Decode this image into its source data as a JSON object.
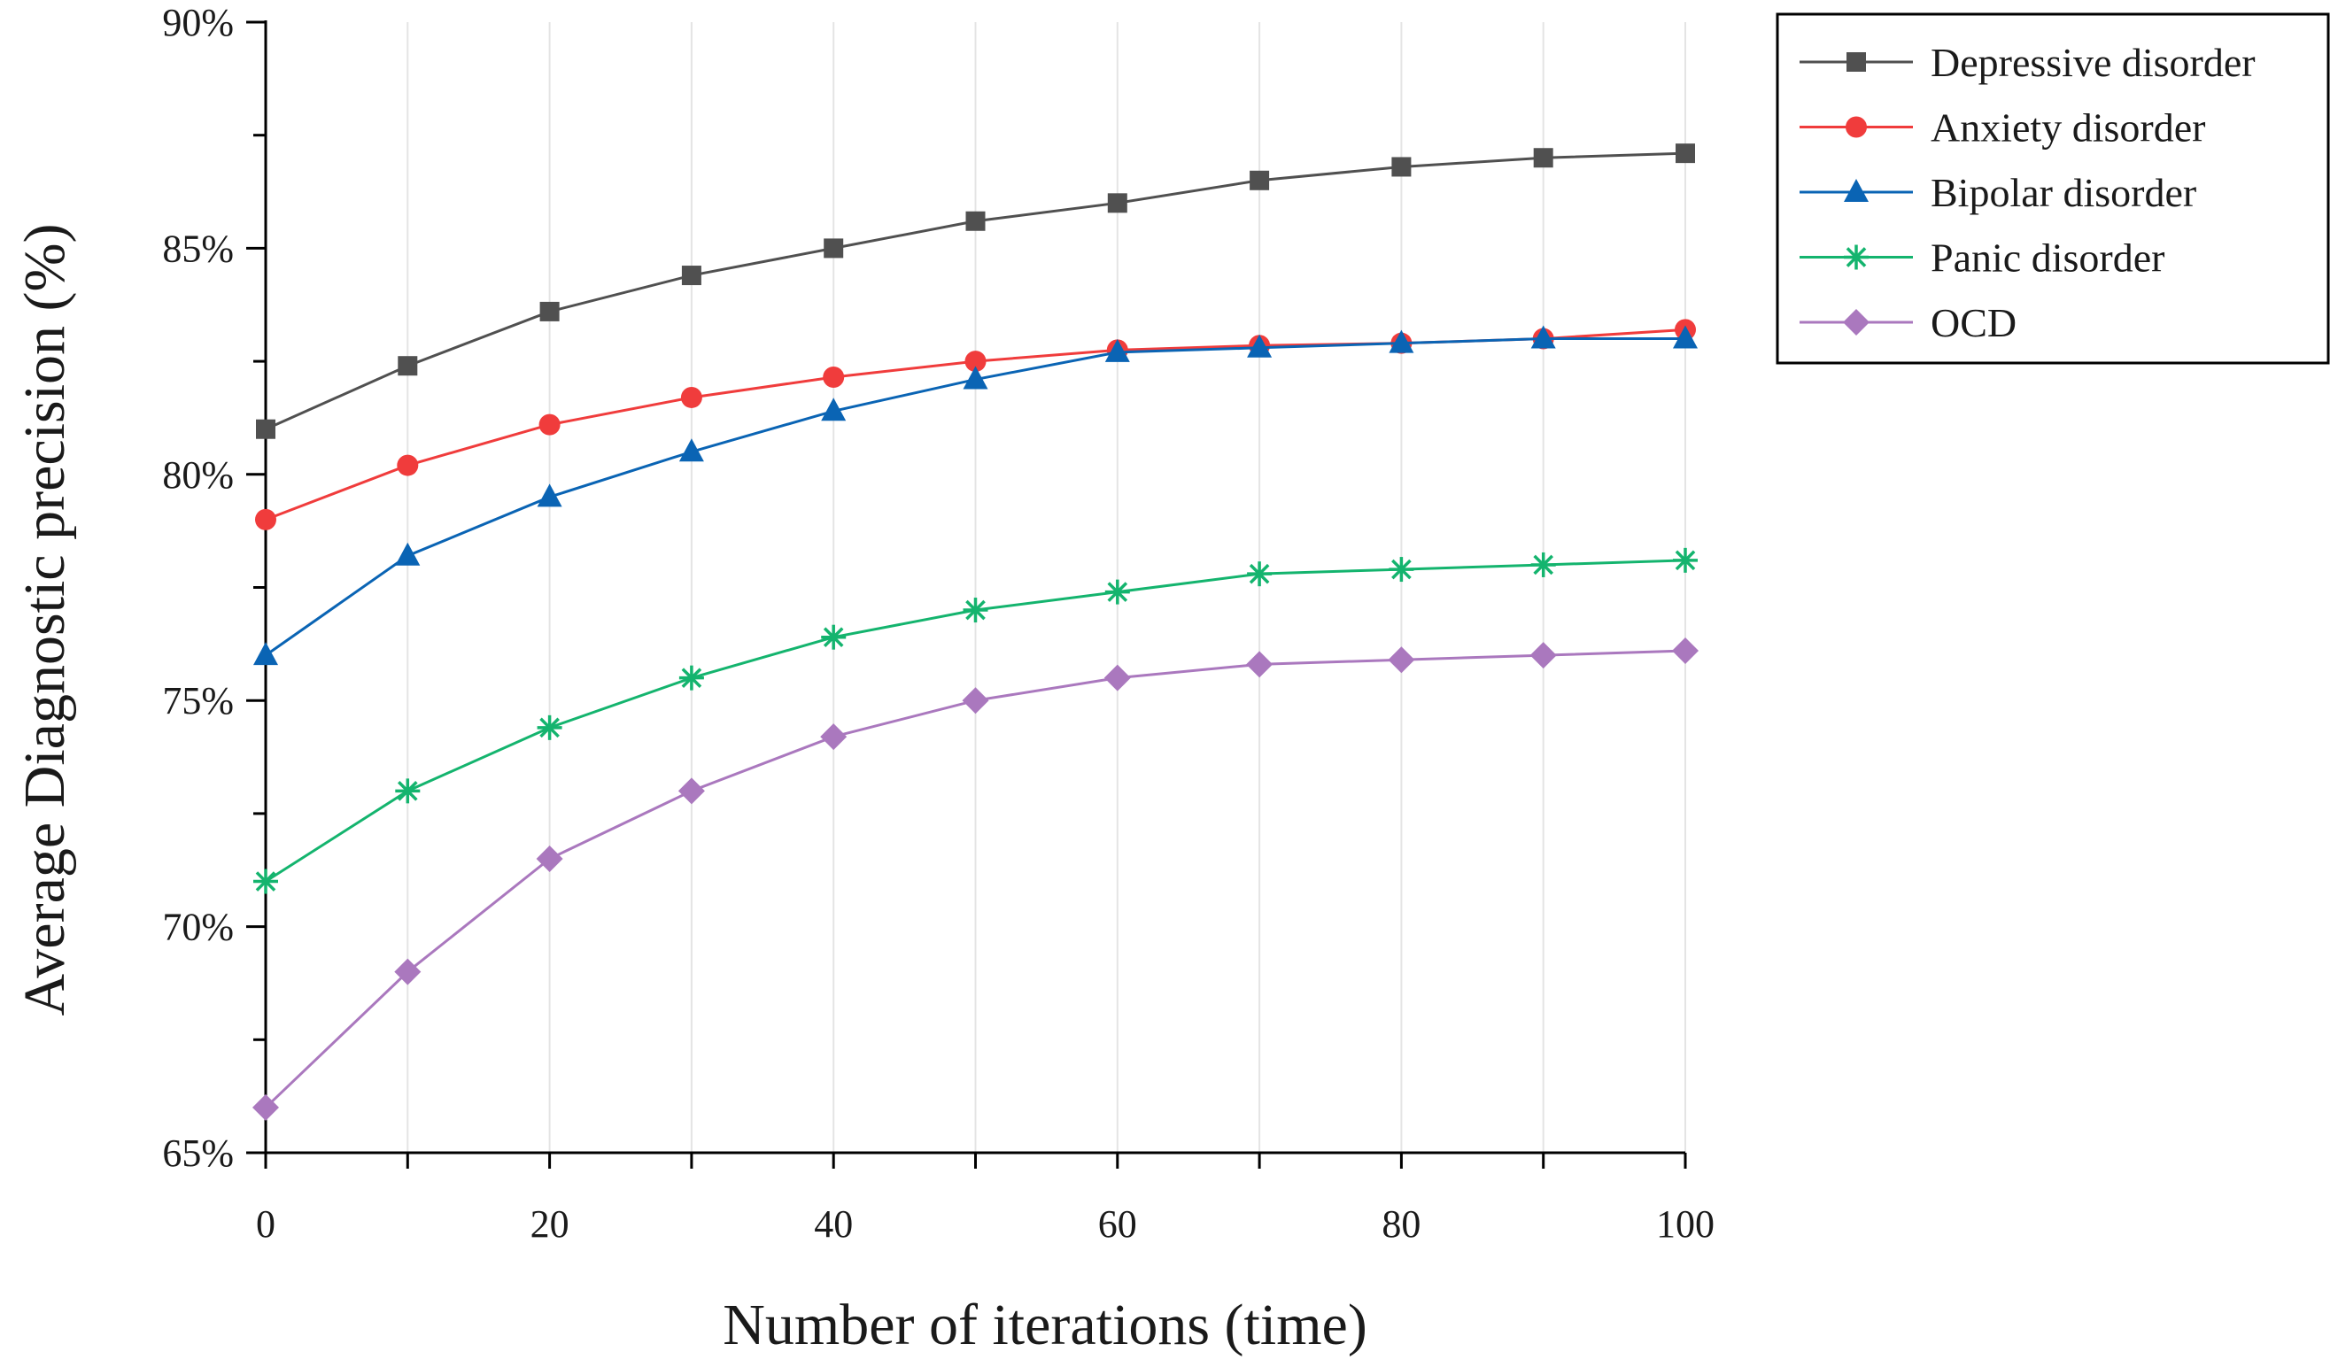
{
  "chart_data": {
    "type": "line",
    "title": "",
    "xlabel": "Number of iterations (time)",
    "ylabel": "Average Diagnostic precision (%)",
    "x": [
      0,
      10,
      20,
      30,
      40,
      50,
      60,
      70,
      80,
      90,
      100
    ],
    "x_ticks": [
      0,
      20,
      40,
      60,
      80,
      100
    ],
    "x_tick_labels": [
      "0",
      "20",
      "40",
      "60",
      "80",
      "100"
    ],
    "xlim": [
      0,
      100
    ],
    "ylim": [
      65,
      90
    ],
    "y_ticks": [
      65,
      70,
      75,
      80,
      85,
      90
    ],
    "y_tick_labels": [
      "65%",
      "70%",
      "75%",
      "80%",
      "85%",
      "90%"
    ],
    "grid": "vertical",
    "legend_position": "top-right",
    "series": [
      {
        "name": "Depressive disorder",
        "color": "#505050",
        "marker": "square",
        "values": [
          81.0,
          82.4,
          83.6,
          84.4,
          85.0,
          85.6,
          86.0,
          86.5,
          86.8,
          87.0,
          87.1
        ]
      },
      {
        "name": "Anxiety disorder",
        "color": "#f03c3c",
        "marker": "circle",
        "values": [
          79.0,
          80.2,
          81.1,
          81.7,
          82.15,
          82.5,
          82.75,
          82.85,
          82.9,
          83.0,
          83.2
        ]
      },
      {
        "name": "Bipolar disorder",
        "color": "#0a64b4",
        "marker": "triangle",
        "values": [
          76.0,
          78.2,
          79.5,
          80.5,
          81.4,
          82.1,
          82.7,
          82.8,
          82.9,
          83.0,
          83.0
        ]
      },
      {
        "name": "Panic disorder",
        "color": "#14b46e",
        "marker": "asterisk",
        "values": [
          71.0,
          73.0,
          74.4,
          75.5,
          76.4,
          77.0,
          77.4,
          77.8,
          77.9,
          78.0,
          78.1
        ]
      },
      {
        "name": "OCD",
        "color": "#aa78be",
        "marker": "diamond",
        "values": [
          66.0,
          69.0,
          71.5,
          73.0,
          74.2,
          75.0,
          75.5,
          75.8,
          75.9,
          76.0,
          76.1
        ]
      }
    ]
  }
}
